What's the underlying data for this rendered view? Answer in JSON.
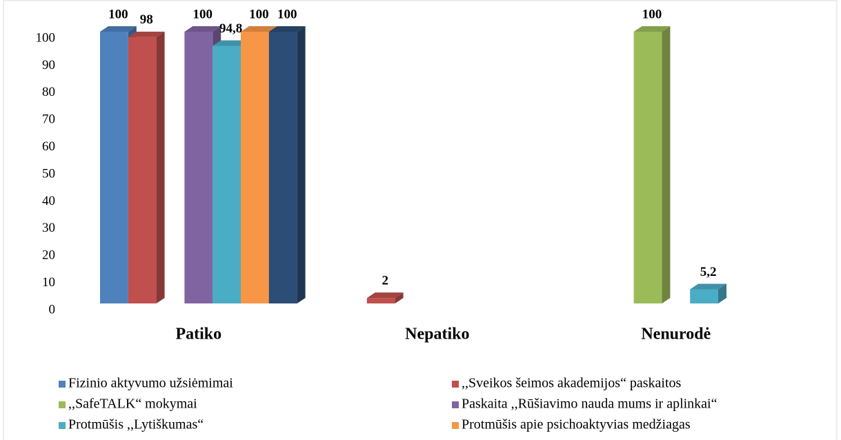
{
  "chart_data": {
    "type": "bar3d",
    "categories": [
      "Patiko",
      "Nepatiko",
      "Nenurodė"
    ],
    "series": [
      {
        "name": "Fizinio aktyvumo užsiėmimai",
        "color": "#4f81bd",
        "values": [
          100,
          null,
          null
        ]
      },
      {
        "name": ",,Sveikos šeimos akademijos“ paskaitos",
        "color": "#c0504d",
        "values": [
          98,
          2,
          null
        ]
      },
      {
        "name": ",,SafeTALK“  mokymai",
        "color": "#9bbb59",
        "values": [
          null,
          null,
          100
        ]
      },
      {
        "name": "Paskaita ,,Rūšiavimo nauda mums ir aplinkai“",
        "color": "#8064a2",
        "values": [
          100,
          null,
          null
        ]
      },
      {
        "name": "Protmūšis ,,Lytiškumas“",
        "color": "#4bacc6",
        "values": [
          94.8,
          null,
          5.2
        ],
        "value_labels": [
          "94,8",
          null,
          "5,2"
        ]
      },
      {
        "name": "Protmūšis apie psichoaktyvias medžiagas",
        "color": "#f79646",
        "values": [
          100,
          null,
          null
        ]
      },
      {
        "name": null,
        "color": "#2c4d75",
        "values": [
          100,
          null,
          null
        ]
      }
    ],
    "ylim": [
      0,
      100
    ],
    "yticks": [
      0,
      10,
      20,
      30,
      40,
      50,
      60,
      70,
      80,
      90,
      100
    ]
  }
}
